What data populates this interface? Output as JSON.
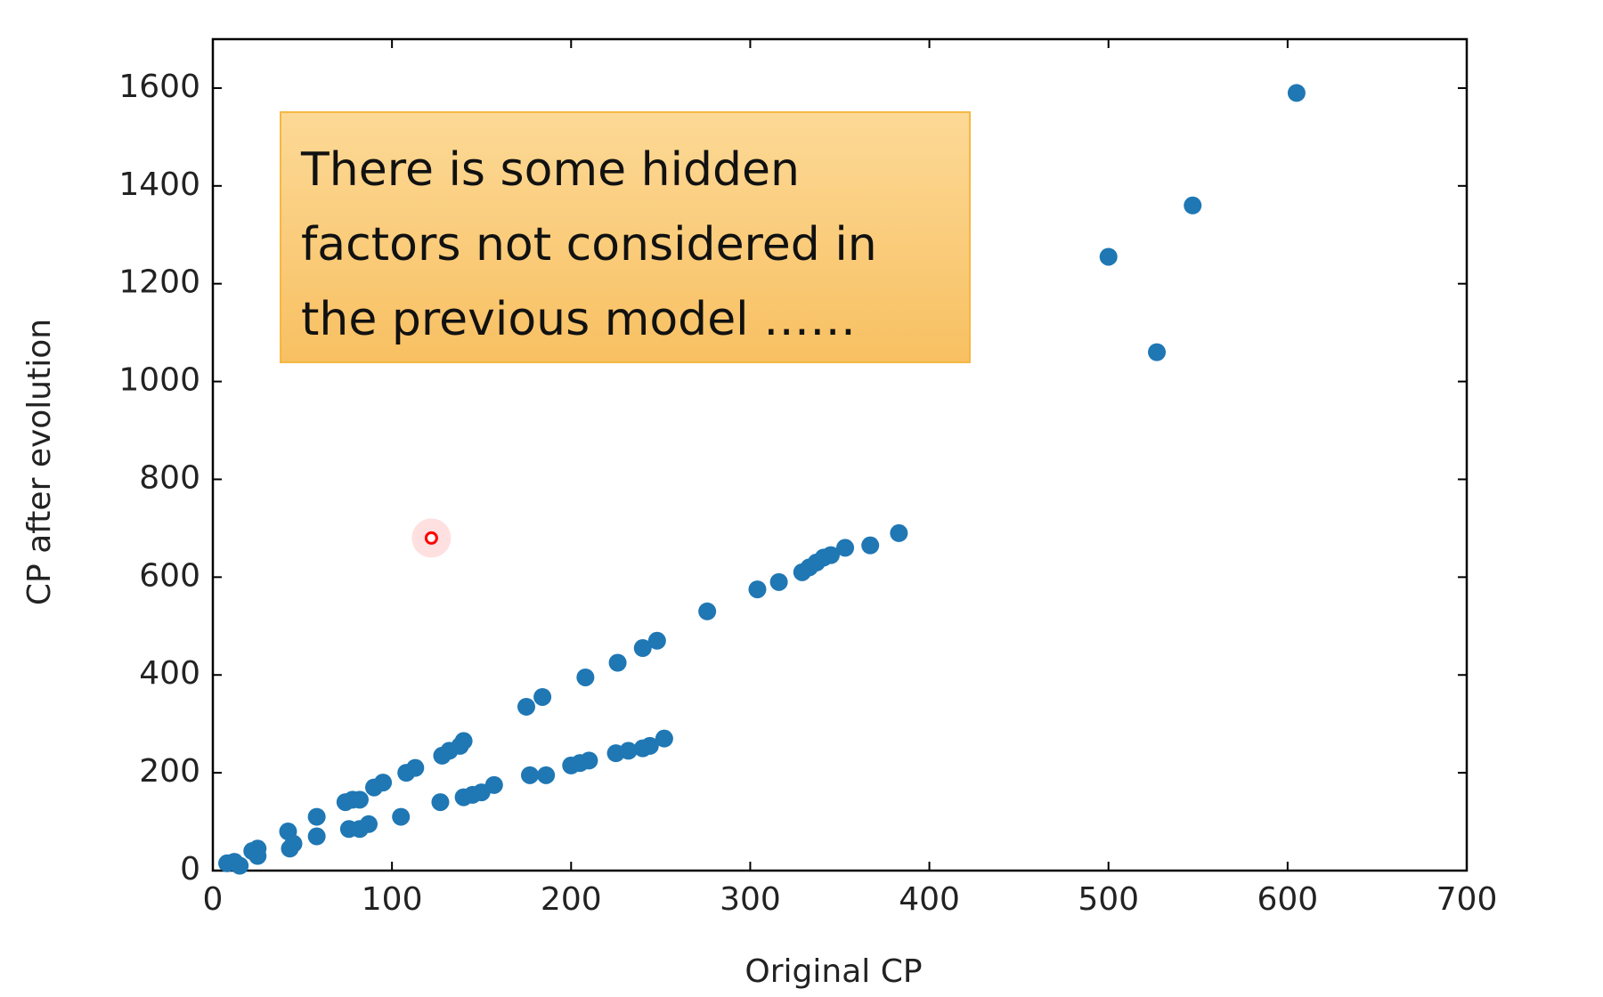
{
  "chart_data": {
    "type": "scatter",
    "xlabel": "Original CP",
    "ylabel": "CP after evolution",
    "xlim": [
      0,
      700
    ],
    "ylim": [
      0,
      1700
    ],
    "xticks": [
      0,
      100,
      200,
      300,
      400,
      500,
      600,
      700
    ],
    "yticks": [
      0,
      200,
      400,
      600,
      800,
      1000,
      1200,
      1400,
      1600
    ],
    "annotation": [
      "There is some hidden",
      "factors not considered in",
      "the previous model ……"
    ],
    "series": [
      {
        "color": "#1f77b4",
        "x": [
          8,
          12,
          22,
          25,
          42,
          58,
          74,
          78,
          82,
          90,
          95,
          108,
          113,
          128,
          132,
          138,
          140,
          175,
          184,
          208,
          226,
          240,
          248,
          276,
          304,
          316,
          329,
          333,
          337,
          341,
          345,
          353,
          367,
          383,
          15,
          25,
          43,
          45,
          58,
          76,
          82,
          87,
          105,
          127,
          140,
          145,
          150,
          157,
          177,
          186,
          200,
          205,
          210,
          225,
          232,
          240,
          244,
          252,
          500,
          527,
          547,
          605
        ],
        "values": [
          15,
          18,
          40,
          45,
          80,
          110,
          140,
          145,
          145,
          170,
          180,
          200,
          210,
          235,
          245,
          255,
          265,
          335,
          355,
          395,
          425,
          455,
          470,
          530,
          575,
          590,
          610,
          620,
          630,
          640,
          645,
          660,
          665,
          690,
          10,
          30,
          45,
          55,
          70,
          85,
          85,
          95,
          110,
          140,
          150,
          155,
          160,
          175,
          195,
          195,
          215,
          220,
          225,
          240,
          245,
          250,
          255,
          270,
          1255,
          1060,
          1360,
          1590
        ]
      },
      {
        "color": "#ff0000",
        "x": [
          122
        ],
        "values": [
          680
        ]
      }
    ]
  }
}
